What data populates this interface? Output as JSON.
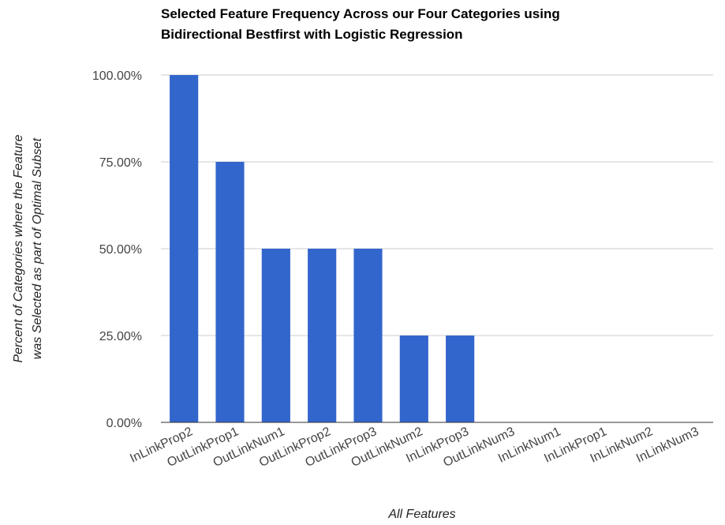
{
  "chart_data": {
    "type": "bar",
    "title": [
      "Selected Feature Frequency Across our Four Categories using",
      "Bidirectional Bestfirst with Logistic Regression"
    ],
    "xlabel": "All Features",
    "ylabel": [
      "Percent of Categories where the Feature",
      "was Selected as part of Optimal Subset"
    ],
    "categories": [
      "InLinkProp2",
      "OutLinkProp1",
      "OutLinkNum1",
      "OutLinkProp2",
      "OutLinkProp3",
      "OutLinkNum2",
      "InLinkProp3",
      "OutLinkNum3",
      "InLinkNum1",
      "InLinkProp1",
      "InLinkNum2",
      "InLinkNum3"
    ],
    "values": [
      100,
      75,
      50,
      50,
      50,
      25,
      25,
      0,
      0,
      0,
      0,
      0
    ],
    "yticks": [
      {
        "value": 0,
        "label": "0.00%"
      },
      {
        "value": 25,
        "label": "25.00%"
      },
      {
        "value": 50,
        "label": "50.00%"
      },
      {
        "value": 75,
        "label": "75.00%"
      },
      {
        "value": 100,
        "label": "100.00%"
      }
    ],
    "ylim": [
      0,
      100
    ],
    "grid": true,
    "legend": "none",
    "bar_color": "#3366cc"
  }
}
